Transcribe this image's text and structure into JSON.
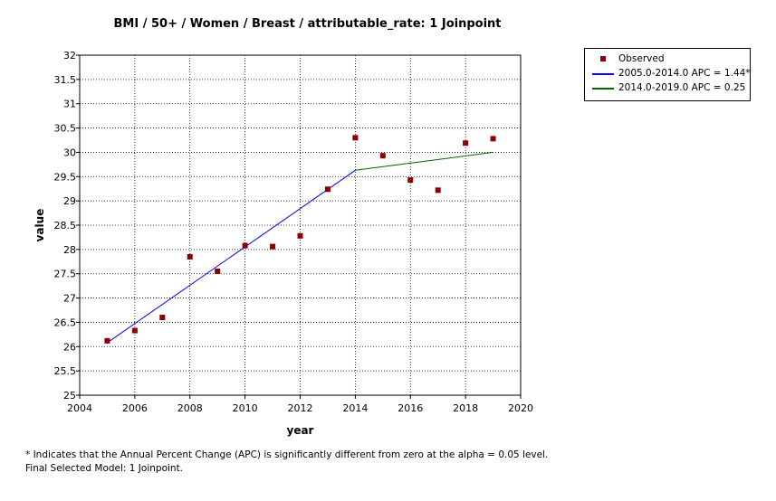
{
  "chart_data": {
    "type": "scatter",
    "title": "BMI / 50+ / Women / Breast / attributable_rate: 1 Joinpoint",
    "xlabel": "year",
    "ylabel": "value",
    "xlim": [
      2004,
      2020
    ],
    "ylim": [
      25,
      32
    ],
    "x_ticks": [
      2004,
      2006,
      2008,
      2010,
      2012,
      2014,
      2016,
      2018,
      2020
    ],
    "y_ticks": [
      "25",
      "25.5",
      "26",
      "26.5",
      "27",
      "27.5",
      "28",
      "28.5",
      "29",
      "29.5",
      "30",
      "30.5",
      "31",
      "31.5",
      "32"
    ],
    "grid": true,
    "legend_position": "right",
    "series": [
      {
        "name": "Observed",
        "kind": "points",
        "color": "#8b0000",
        "x": [
          2005,
          2006,
          2007,
          2008,
          2009,
          2010,
          2011,
          2012,
          2013,
          2014,
          2015,
          2016,
          2017,
          2018,
          2019
        ],
        "y": [
          26.12,
          26.33,
          26.6,
          27.85,
          27.55,
          28.08,
          28.06,
          28.28,
          29.24,
          30.3,
          29.93,
          29.43,
          29.22,
          30.19,
          30.28
        ]
      },
      {
        "name": "2005.0-2014.0 APC  = 1.44*",
        "kind": "line",
        "color": "#0000ff",
        "x": [
          2005,
          2014
        ],
        "y": [
          26.08,
          29.63
        ]
      },
      {
        "name": "2014.0-2019.0 APC  = 0.25",
        "kind": "line",
        "color": "#006400",
        "x": [
          2014,
          2019
        ],
        "y": [
          29.63,
          30.0
        ]
      }
    ]
  },
  "footnotes": [
    "* Indicates that the Annual Percent Change (APC) is significantly different from zero at the alpha = 0.05 level.",
    "Final Selected Model: 1 Joinpoint."
  ]
}
